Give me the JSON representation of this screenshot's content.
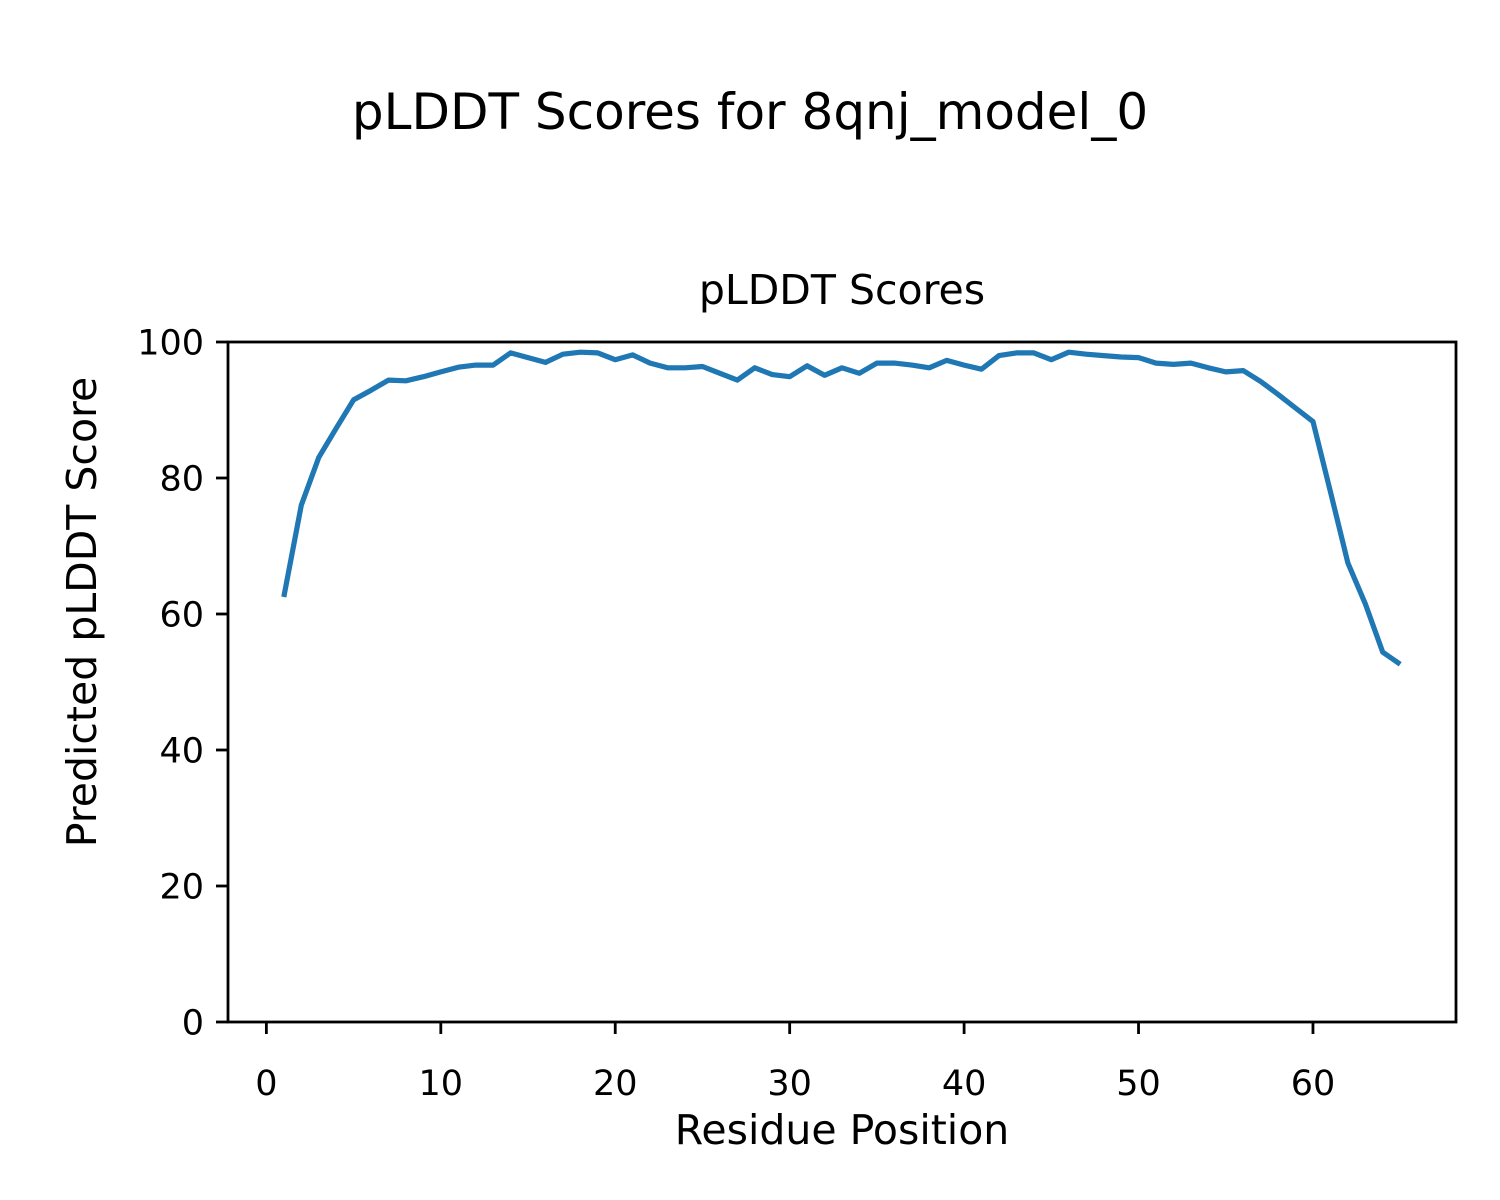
{
  "figure": {
    "suptitle": "pLDDT Scores for 8qnj_model_0"
  },
  "chart_data": {
    "type": "line",
    "title": "pLDDT Scores",
    "xlabel": "Residue Position",
    "ylabel": "Predicted pLDDT Score",
    "series_name": "pLDDT",
    "x": [
      1,
      2,
      3,
      4,
      5,
      6,
      7,
      8,
      9,
      10,
      11,
      12,
      13,
      14,
      15,
      16,
      17,
      18,
      19,
      20,
      21,
      22,
      23,
      24,
      25,
      26,
      27,
      28,
      29,
      30,
      31,
      32,
      33,
      34,
      35,
      36,
      37,
      38,
      39,
      40,
      41,
      42,
      43,
      44,
      45,
      46,
      47,
      48,
      49,
      50,
      51,
      52,
      53,
      54,
      55,
      56,
      57,
      58,
      59,
      60,
      61,
      62,
      63,
      64,
      65
    ],
    "values": [
      62.5,
      76.0,
      83.0,
      87.3,
      91.5,
      92.9,
      94.4,
      94.3,
      94.9,
      95.6,
      96.3,
      96.6,
      96.6,
      98.4,
      97.7,
      97.0,
      98.2,
      98.5,
      98.4,
      97.4,
      98.1,
      96.9,
      96.2,
      96.2,
      96.4,
      95.4,
      94.4,
      96.2,
      95.2,
      94.9,
      96.5,
      95.1,
      96.2,
      95.4,
      96.9,
      96.9,
      96.6,
      96.2,
      97.3,
      96.6,
      96.0,
      98.0,
      98.4,
      98.4,
      97.4,
      98.5,
      98.2,
      98.0,
      97.8,
      97.7,
      96.9,
      96.7,
      96.9,
      96.2,
      95.6,
      95.8,
      94.2,
      92.3,
      90.3,
      88.3,
      78.0,
      67.5,
      61.5,
      54.4,
      52.6
    ],
    "xlim": [
      -2.2,
      68.2
    ],
    "ylim": [
      0,
      100
    ],
    "xticks": [
      0,
      10,
      20,
      30,
      40,
      50,
      60
    ],
    "yticks": [
      0,
      20,
      40,
      60,
      80,
      100
    ],
    "grid": false,
    "legend": null,
    "line_color": "#1f77b4",
    "line_width": 5.2,
    "axis_color": "#000000"
  }
}
